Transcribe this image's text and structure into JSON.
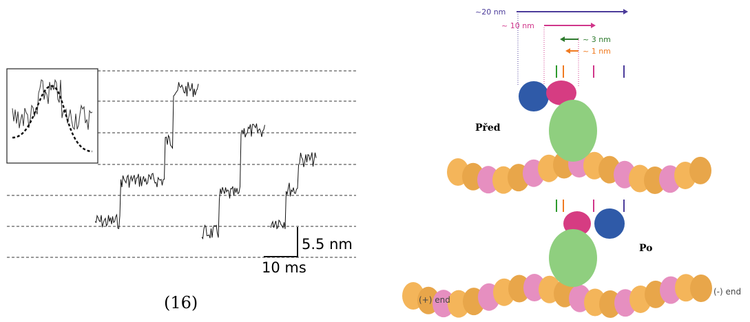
{
  "left_panel": {
    "scale_y": "5.5 nm",
    "scale_x": "10 ms",
    "caption": "(16)"
  },
  "right_panel": {
    "dist_20": "~20 nm",
    "dist_10": "~ 10 nm",
    "dist_3": "~ 3 nm",
    "dist_1": "~ 1 nm",
    "state_before": "Před",
    "state_after": "Po",
    "plus_end": "(+) end",
    "minus_end": "(-) end"
  }
}
